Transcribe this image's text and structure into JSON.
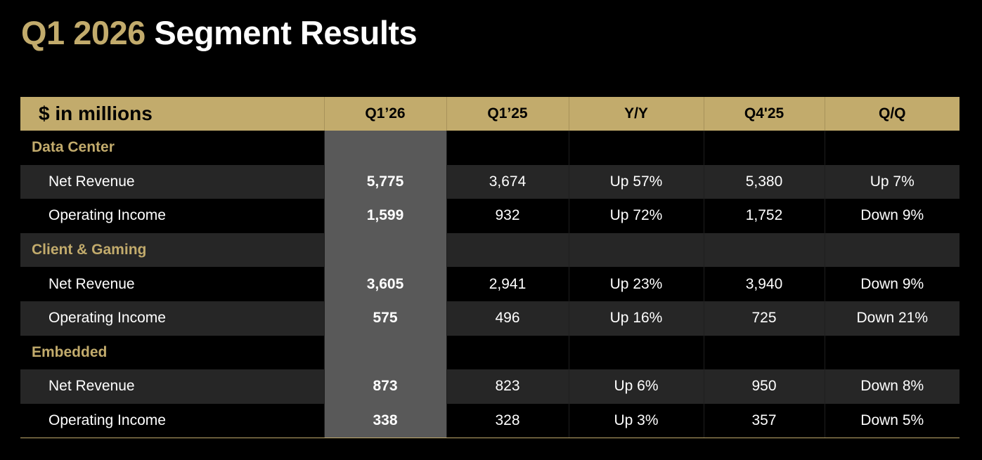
{
  "title": {
    "accent": "Q1 2026",
    "rest": "Segment Results"
  },
  "colors": {
    "gold": "#c2ab6c",
    "background": "#000000",
    "highlight_column": "#595959",
    "alt_row": "#262626"
  },
  "table": {
    "headers": [
      "$ in millions",
      "Q1’26",
      "Q1’25",
      "Y/Y",
      "Q4'25",
      "Q/Q"
    ],
    "segments": [
      {
        "name": "Data Center",
        "rows": [
          {
            "label": "Net Revenue",
            "q1_26": "5,775",
            "q1_25": "3,674",
            "yy": "Up 57%",
            "q4_25": "5,380",
            "qq": "Up 7%"
          },
          {
            "label": "Operating Income",
            "q1_26": "1,599",
            "q1_25": "932",
            "yy": "Up 72%",
            "q4_25": "1,752",
            "qq": "Down 9%"
          }
        ]
      },
      {
        "name": "Client & Gaming",
        "rows": [
          {
            "label": "Net Revenue",
            "q1_26": "3,605",
            "q1_25": "2,941",
            "yy": "Up 23%",
            "q4_25": "3,940",
            "qq": "Down 9%"
          },
          {
            "label": "Operating Income",
            "q1_26": "575",
            "q1_25": "496",
            "yy": "Up 16%",
            "q4_25": "725",
            "qq": "Down 21%"
          }
        ]
      },
      {
        "name": "Embedded",
        "rows": [
          {
            "label": "Net Revenue",
            "q1_26": "873",
            "q1_25": "823",
            "yy": "Up 6%",
            "q4_25": "950",
            "qq": "Down 8%"
          },
          {
            "label": "Operating Income",
            "q1_26": "338",
            "q1_25": "328",
            "yy": "Up 3%",
            "q4_25": "357",
            "qq": "Down 5%"
          }
        ]
      }
    ]
  }
}
